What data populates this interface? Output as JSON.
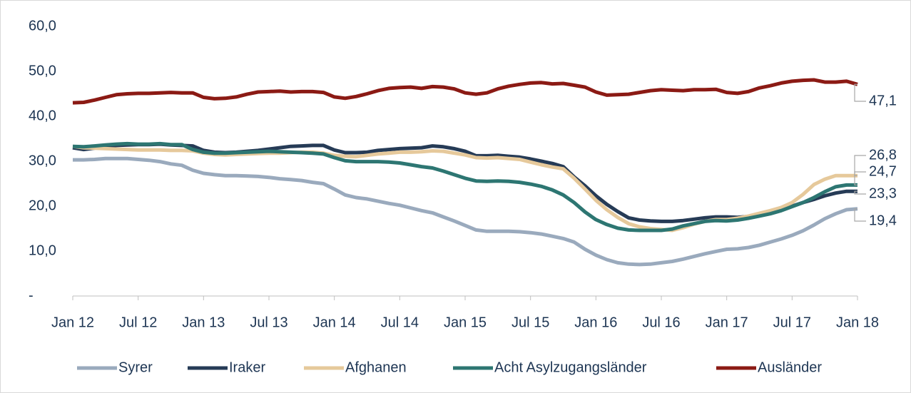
{
  "chart_data": {
    "type": "line",
    "categories": [
      "Jan 12",
      null,
      null,
      null,
      null,
      null,
      "Jul 12",
      null,
      null,
      null,
      null,
      null,
      "Jan 13",
      null,
      null,
      null,
      null,
      null,
      "Jul 13",
      null,
      null,
      null,
      null,
      null,
      "Jan 14",
      null,
      null,
      null,
      null,
      null,
      "Jul 14",
      null,
      null,
      null,
      null,
      null,
      "Jan 15",
      null,
      null,
      null,
      null,
      null,
      "Jul 15",
      null,
      null,
      null,
      null,
      null,
      "Jan 16",
      null,
      null,
      null,
      null,
      null,
      "Jul 16",
      null,
      null,
      null,
      null,
      null,
      "Jan 17",
      null,
      null,
      null,
      null,
      null,
      "Jul 17",
      null,
      null,
      null,
      null,
      null,
      "Jan 18"
    ],
    "ylim": [
      0,
      60
    ],
    "yticks": [
      {
        "value": 0,
        "label": "-"
      },
      {
        "value": 10,
        "label": "10,0"
      },
      {
        "value": 20,
        "label": "20,0"
      },
      {
        "value": 30,
        "label": "30,0"
      },
      {
        "value": 40,
        "label": "40,0"
      },
      {
        "value": 50,
        "label": "50,0"
      },
      {
        "value": 60,
        "label": "60,0"
      }
    ],
    "grid": false,
    "legend": "bottom",
    "series": [
      {
        "name": "Syrer",
        "color": "#9aaabd",
        "values": [
          30.3,
          30.3,
          30.4,
          30.6,
          30.6,
          30.6,
          30.4,
          30.2,
          29.9,
          29.4,
          29.1,
          28.0,
          27.3,
          27.0,
          26.8,
          26.8,
          26.7,
          26.6,
          26.4,
          26.1,
          25.9,
          25.7,
          25.3,
          25.0,
          23.8,
          22.5,
          21.9,
          21.6,
          21.1,
          20.6,
          20.2,
          19.6,
          19.0,
          18.5,
          17.6,
          16.7,
          15.7,
          14.7,
          14.4,
          14.4,
          14.4,
          14.3,
          14.1,
          13.8,
          13.3,
          12.8,
          12.0,
          10.4,
          9.1,
          8.1,
          7.4,
          7.1,
          7.0,
          7.1,
          7.4,
          7.7,
          8.2,
          8.8,
          9.4,
          9.9,
          10.4,
          10.5,
          10.8,
          11.3,
          12.0,
          12.7,
          13.5,
          14.5,
          15.8,
          17.2,
          18.3,
          19.2,
          19.4
        ],
        "value_labels": [
          null,
          null,
          null,
          null,
          null,
          null,
          null,
          null,
          null,
          null,
          null,
          null,
          null,
          null,
          null,
          null,
          null,
          null,
          null,
          null,
          null,
          null,
          null,
          null,
          null,
          null,
          null,
          null,
          null,
          null,
          null,
          null,
          null,
          null,
          null,
          null,
          null,
          null,
          null,
          null,
          null,
          null,
          null,
          null,
          null,
          null,
          null,
          null,
          null,
          null,
          null,
          null,
          null,
          null,
          null,
          null,
          null,
          null,
          null,
          null,
          null,
          null,
          null,
          null,
          null,
          null,
          null,
          null,
          null,
          null,
          null,
          null,
          "19,4"
        ]
      },
      {
        "name": "Iraker",
        "color": "#263b56",
        "values": [
          33.0,
          32.6,
          32.9,
          33.3,
          33.5,
          33.6,
          33.7,
          33.7,
          33.8,
          33.6,
          33.5,
          33.4,
          32.4,
          32.0,
          31.9,
          32.0,
          32.2,
          32.4,
          32.7,
          33.0,
          33.3,
          33.4,
          33.5,
          33.5,
          32.5,
          31.9,
          31.9,
          32.0,
          32.4,
          32.6,
          32.8,
          32.9,
          33.0,
          33.4,
          33.2,
          32.8,
          32.2,
          31.2,
          31.2,
          31.3,
          31.1,
          30.9,
          30.5,
          30.0,
          29.5,
          28.8,
          26.5,
          24.5,
          22.3,
          20.4,
          18.8,
          17.4,
          16.9,
          16.7,
          16.6,
          16.6,
          16.8,
          17.1,
          17.4,
          17.6,
          17.6,
          17.5,
          17.7,
          18.0,
          18.5,
          19.2,
          20.0,
          20.8,
          21.5,
          22.3,
          22.9,
          23.3,
          23.3
        ],
        "value_labels": [
          null,
          null,
          null,
          null,
          null,
          null,
          null,
          null,
          null,
          null,
          null,
          null,
          null,
          null,
          null,
          null,
          null,
          null,
          null,
          null,
          null,
          null,
          null,
          null,
          null,
          null,
          null,
          null,
          null,
          null,
          null,
          null,
          null,
          null,
          null,
          null,
          null,
          null,
          null,
          null,
          null,
          null,
          null,
          null,
          null,
          null,
          null,
          null,
          null,
          null,
          null,
          null,
          null,
          null,
          null,
          null,
          null,
          null,
          null,
          null,
          null,
          null,
          null,
          null,
          null,
          null,
          null,
          null,
          null,
          null,
          null,
          null,
          "23,3"
        ]
      },
      {
        "name": "Afghanen",
        "color": "#e6c99b",
        "values": [
          33.3,
          33.0,
          32.9,
          32.8,
          32.7,
          32.6,
          32.5,
          32.5,
          32.5,
          32.4,
          32.4,
          32.3,
          31.8,
          31.5,
          31.4,
          31.5,
          31.6,
          31.7,
          31.8,
          31.8,
          31.9,
          32.0,
          32.0,
          31.8,
          31.3,
          31.1,
          31.0,
          31.3,
          31.6,
          31.8,
          32.0,
          32.0,
          32.1,
          32.3,
          32.2,
          31.8,
          31.4,
          30.8,
          30.7,
          30.8,
          30.6,
          30.4,
          29.8,
          29.2,
          28.7,
          28.3,
          26.2,
          23.8,
          21.3,
          19.2,
          17.5,
          16.1,
          15.4,
          15.0,
          14.8,
          14.6,
          15.2,
          16.0,
          16.6,
          17.0,
          17.0,
          17.3,
          17.8,
          18.4,
          19.0,
          19.7,
          20.8,
          22.6,
          24.8,
          26.0,
          26.8,
          26.8,
          26.8
        ],
        "value_labels": [
          null,
          null,
          null,
          null,
          null,
          null,
          null,
          null,
          null,
          null,
          null,
          null,
          null,
          null,
          null,
          null,
          null,
          null,
          null,
          null,
          null,
          null,
          null,
          null,
          null,
          null,
          null,
          null,
          null,
          null,
          null,
          null,
          null,
          null,
          null,
          null,
          null,
          null,
          null,
          null,
          null,
          null,
          null,
          null,
          null,
          null,
          null,
          null,
          null,
          null,
          null,
          null,
          null,
          null,
          null,
          null,
          null,
          null,
          null,
          null,
          null,
          null,
          null,
          null,
          null,
          null,
          null,
          null,
          null,
          null,
          null,
          null,
          "26,8"
        ]
      },
      {
        "name": "Acht Asylzugangsländer",
        "color": "#2d7672",
        "values": [
          33.3,
          33.2,
          33.4,
          33.6,
          33.8,
          33.9,
          33.8,
          33.8,
          33.9,
          33.7,
          33.7,
          32.6,
          32.0,
          31.8,
          31.8,
          31.9,
          32.0,
          32.1,
          32.2,
          32.1,
          32.0,
          31.9,
          31.8,
          31.6,
          30.8,
          30.1,
          29.9,
          29.9,
          29.9,
          29.8,
          29.6,
          29.2,
          28.8,
          28.5,
          27.8,
          27.0,
          26.2,
          25.6,
          25.5,
          25.6,
          25.5,
          25.3,
          24.9,
          24.4,
          23.6,
          22.5,
          20.8,
          18.7,
          17.0,
          15.9,
          15.1,
          14.7,
          14.6,
          14.6,
          14.6,
          14.9,
          15.6,
          16.1,
          16.6,
          16.8,
          16.7,
          16.9,
          17.3,
          17.8,
          18.3,
          19.0,
          19.9,
          20.8,
          21.9,
          23.2,
          24.3,
          24.7,
          24.7
        ],
        "value_labels": [
          null,
          null,
          null,
          null,
          null,
          null,
          null,
          null,
          null,
          null,
          null,
          null,
          null,
          null,
          null,
          null,
          null,
          null,
          null,
          null,
          null,
          null,
          null,
          null,
          null,
          null,
          null,
          null,
          null,
          null,
          null,
          null,
          null,
          null,
          null,
          null,
          null,
          null,
          null,
          null,
          null,
          null,
          null,
          null,
          null,
          null,
          null,
          null,
          null,
          null,
          null,
          null,
          null,
          null,
          null,
          null,
          null,
          null,
          null,
          null,
          null,
          null,
          null,
          null,
          null,
          null,
          null,
          null,
          null,
          null,
          null,
          null,
          "24,7"
        ]
      },
      {
        "name": "Ausländer",
        "color": "#8b1a14",
        "values": [
          43.0,
          43.1,
          43.6,
          44.2,
          44.8,
          45.0,
          45.1,
          45.1,
          45.2,
          45.3,
          45.2,
          45.2,
          44.2,
          43.9,
          44.0,
          44.3,
          44.9,
          45.4,
          45.5,
          45.6,
          45.4,
          45.5,
          45.5,
          45.3,
          44.3,
          44.0,
          44.4,
          45.0,
          45.7,
          46.2,
          46.4,
          46.5,
          46.2,
          46.6,
          46.5,
          46.1,
          45.2,
          44.9,
          45.2,
          46.1,
          46.7,
          47.1,
          47.4,
          47.5,
          47.2,
          47.3,
          46.9,
          46.5,
          45.4,
          44.7,
          44.8,
          44.9,
          45.3,
          45.7,
          45.9,
          45.8,
          45.7,
          45.9,
          45.9,
          46.0,
          45.3,
          45.1,
          45.5,
          46.3,
          46.8,
          47.4,
          47.8,
          48.0,
          48.1,
          47.6,
          47.6,
          47.8,
          47.1
        ],
        "value_labels": [
          null,
          null,
          null,
          null,
          null,
          null,
          null,
          null,
          null,
          null,
          null,
          null,
          null,
          null,
          null,
          null,
          null,
          null,
          null,
          null,
          null,
          null,
          null,
          null,
          null,
          null,
          null,
          null,
          null,
          null,
          null,
          null,
          null,
          null,
          null,
          null,
          null,
          null,
          null,
          null,
          null,
          null,
          null,
          null,
          null,
          null,
          null,
          null,
          null,
          null,
          null,
          null,
          null,
          null,
          null,
          null,
          null,
          null,
          null,
          null,
          null,
          null,
          null,
          null,
          null,
          null,
          null,
          null,
          null,
          null,
          null,
          null,
          "47,1"
        ]
      }
    ]
  }
}
